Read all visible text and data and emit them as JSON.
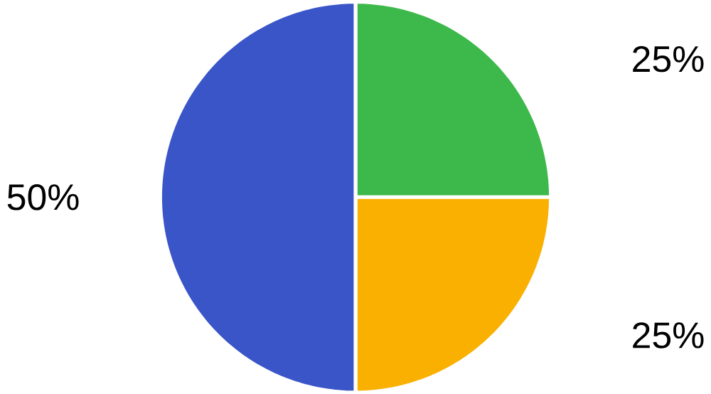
{
  "chart_data": {
    "type": "pie",
    "categories": [
      null,
      null,
      null
    ],
    "values": [
      25,
      25,
      50
    ],
    "value_labels": [
      "25%",
      "25%",
      "50%"
    ],
    "colors": [
      "#3cb94a",
      "#f9b000",
      "#3a55c8"
    ]
  }
}
